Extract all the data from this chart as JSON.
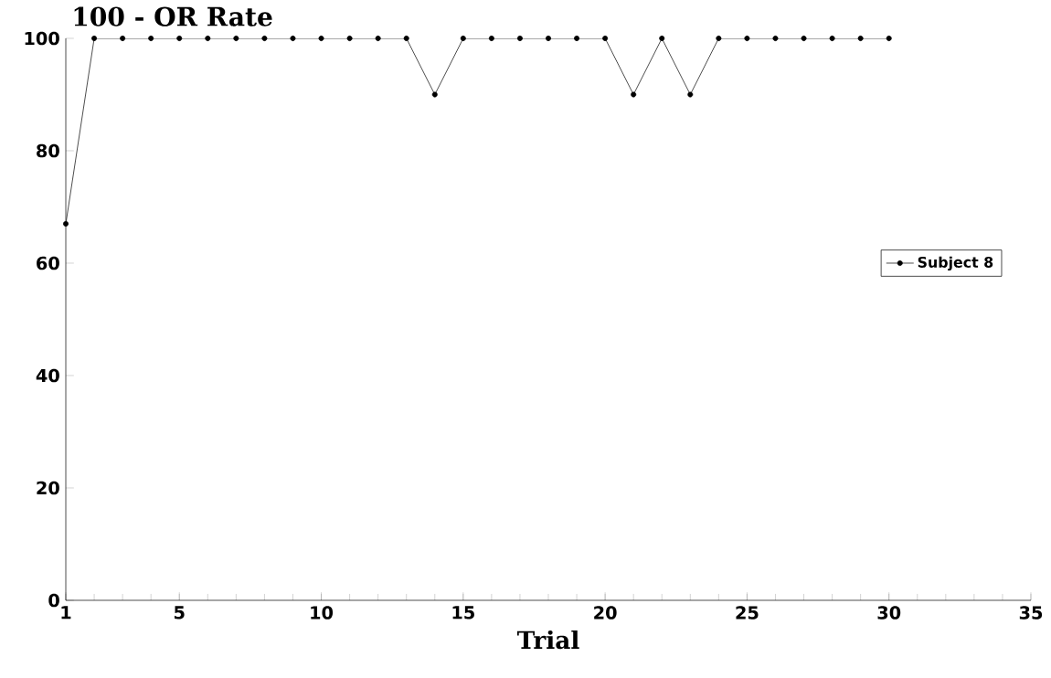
{
  "chart_data": {
    "type": "line",
    "title": "100 - OR Rate",
    "xlabel": "Trial",
    "x": [
      1,
      2,
      3,
      4,
      5,
      6,
      7,
      8,
      9,
      10,
      11,
      12,
      13,
      14,
      15,
      16,
      17,
      18,
      19,
      20,
      21,
      22,
      23,
      24,
      25,
      26,
      27,
      28,
      29,
      30
    ],
    "series": [
      {
        "name": "Subject 8",
        "color": "#000000",
        "values": [
          67,
          100,
          100,
          100,
          100,
          100,
          100,
          100,
          100,
          100,
          100,
          100,
          100,
          90,
          100,
          100,
          100,
          100,
          100,
          100,
          90,
          100,
          90,
          100,
          100,
          100,
          100,
          100,
          100,
          100
        ]
      }
    ],
    "xlim": [
      1,
      35
    ],
    "xticks": [
      1,
      5,
      10,
      15,
      20,
      25,
      30,
      35
    ],
    "ylim": [
      0,
      100
    ],
    "yticks": [
      0,
      20,
      40,
      60,
      80,
      100
    ],
    "marker": "circle",
    "line_style": "solid",
    "legend": "right",
    "grid": false
  }
}
